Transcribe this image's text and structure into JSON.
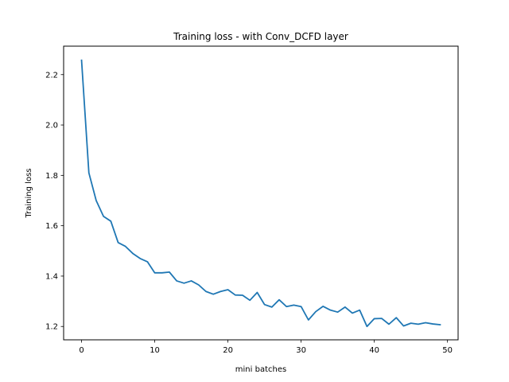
{
  "chart_data": {
    "type": "line",
    "title": "Training loss - with Conv_DCFD layer",
    "xlabel": "mini batches",
    "ylabel": "Training loss",
    "xlim": [
      -2.45,
      51.45
    ],
    "ylim": [
      1.147,
      2.313
    ],
    "xticks": [
      0,
      10,
      20,
      30,
      40,
      50
    ],
    "yticks": [
      1.2,
      1.4,
      1.6,
      1.8,
      2.0,
      2.2
    ],
    "ytick_labels": [
      "1.2",
      "1.4",
      "1.6",
      "1.8",
      "2.0",
      "2.2"
    ],
    "grid": false,
    "series": [
      {
        "color": "#1f77b4",
        "x": [
          0,
          1,
          2,
          3,
          4,
          5,
          6,
          7,
          8,
          9,
          10,
          11,
          12,
          13,
          14,
          15,
          16,
          17,
          18,
          19,
          20,
          21,
          22,
          23,
          24,
          25,
          26,
          27,
          28,
          29,
          30,
          31,
          32,
          33,
          34,
          35,
          36,
          37,
          38,
          39,
          40,
          41,
          42,
          43,
          44,
          45,
          46,
          47,
          48,
          49
        ],
        "values": [
          2.257,
          1.81,
          1.7,
          1.637,
          1.618,
          1.533,
          1.518,
          1.49,
          1.47,
          1.457,
          1.413,
          1.413,
          1.416,
          1.381,
          1.372,
          1.381,
          1.365,
          1.339,
          1.328,
          1.339,
          1.346,
          1.325,
          1.324,
          1.304,
          1.335,
          1.287,
          1.277,
          1.306,
          1.279,
          1.285,
          1.279,
          1.226,
          1.259,
          1.28,
          1.265,
          1.257,
          1.277,
          1.253,
          1.265,
          1.2,
          1.231,
          1.232,
          1.209,
          1.235,
          1.202,
          1.213,
          1.209,
          1.215,
          1.21,
          1.207
        ]
      }
    ]
  }
}
